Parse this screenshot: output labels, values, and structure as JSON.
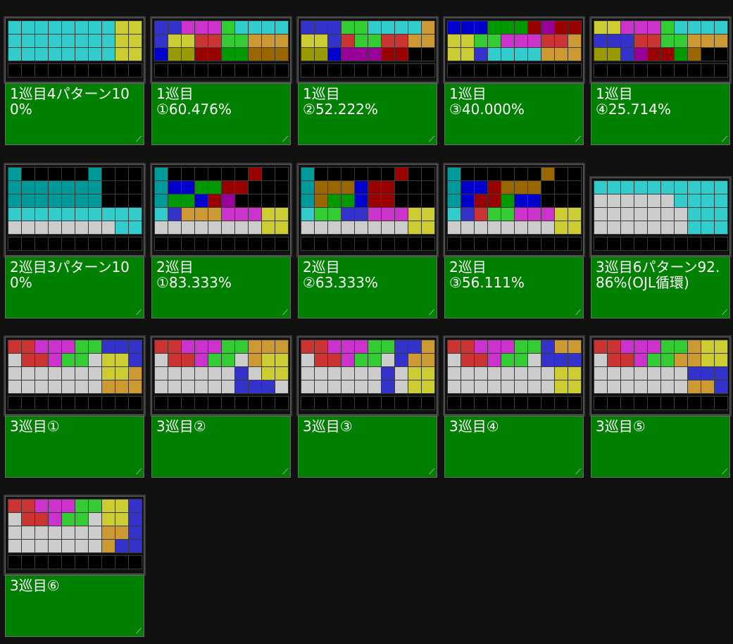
{
  "colors": {
    "_": "#000000",
    "I": "#33cccc",
    "O": "#cccc33",
    "T": "#cc33cc",
    "S": "#33cc33",
    "Z": "#cc3333",
    "J": "#3333cc",
    "L": "#cc9933",
    "G": "#cccccc",
    "i": "#009999",
    "o": "#999900",
    "t": "#990099",
    "s": "#009900",
    "z": "#990000",
    "j": "#0000cc",
    "l": "#996600"
  },
  "pages": [
    {
      "label": "1巡目4パターン100%",
      "rows": [
        "IIIIIIIIOO",
        "IIIIIIIIOO",
        "IIIIIIIIOO"
      ]
    },
    {
      "label": "1巡目\n①60.476%",
      "rows": [
        "JJTTTSIIII",
        "JOOZZSSLLL",
        "joozzsslll"
      ]
    },
    {
      "label": "1巡目\n②52.222%",
      "rows": [
        "JJJSSIIIIL",
        "OOJZSSZZLL",
        "oojtttzz__"
      ]
    },
    {
      "label": "1巡目\n③40.000%",
      "rows": [
        "jjjsssztzz",
        "OOSSTTTZZL",
        "OOJIIIILLL"
      ]
    },
    {
      "label": "1巡目\n④25.714%",
      "rows": [
        "OOTTTSIIII",
        "JJJZZSSLLL",
        "ooJtzzsl__"
      ]
    },
    {
      "label": "2巡目3パターン100%",
      "rows": [
        "i_____i___",
        "iiiiiii___",
        "iiiiiii___",
        "IIIIIIIIII",
        "GGGGGGGGII"
      ]
    },
    {
      "label": "2巡目\n①83.333%",
      "rows": [
        "i______z__",
        "ijjsszz___",
        "issjzt____",
        "IJLLLTTTOO",
        "GGGGGGGGOO"
      ]
    },
    {
      "label": "2巡目\n②63.333%",
      "rows": [
        "i______z__",
        "illljzz___",
        "ilssjzz___",
        "ISSJJTTTOO",
        "GGGGGGGGOO"
      ]
    },
    {
      "label": "2巡目\n③56.111%",
      "rows": [
        "i______l__",
        "ijjzlll___",
        "ijzzsjj___",
        "IJZSSTTTOO",
        "GGGGGGGGOO"
      ]
    },
    {
      "label": "3巡目6パターン92.86%(OJL循環)",
      "rows": [
        "IIIIIIIIII",
        "GGGGGGIIII",
        "GGGGGGGIII",
        "GGGGGGGIII"
      ]
    },
    {
      "label": "3巡目①",
      "rows": [
        "ZZTTTSSJJJ",
        "GZZTSSGOOJ",
        "GGGGGGGOOL",
        "GGGGGGGLLL"
      ]
    },
    {
      "label": "3巡目②",
      "rows": [
        "ZZTTTSSLLL",
        "GZZTSSGLOO",
        "GGGGGGJGOO",
        "GGGGGGJJJG"
      ]
    },
    {
      "label": "3巡目③",
      "rows": [
        "ZZTTTSSJJL",
        "GZZTSSGJLL",
        "GGGGGGJGOO",
        "GGGGGGJGOO"
      ]
    },
    {
      "label": "3巡目④",
      "rows": [
        "ZZTTTSSJLL",
        "GZZTSSGJJJ",
        "GGGGGGGGOO",
        "GGGGGGGGOO"
      ]
    },
    {
      "label": "3巡目⑤",
      "rows": [
        "ZZTTTSSLOO",
        "GZZTSSLLOO",
        "GGGGGGGJJJ",
        "GGGGGGGLLJ"
      ]
    },
    {
      "label": "3巡目⑥",
      "rows": [
        "ZZTTTSSOOJ",
        "GZZTSSGOOJ",
        "GGGGGGGLLJ",
        "GGGGGGGLJJ"
      ]
    }
  ]
}
